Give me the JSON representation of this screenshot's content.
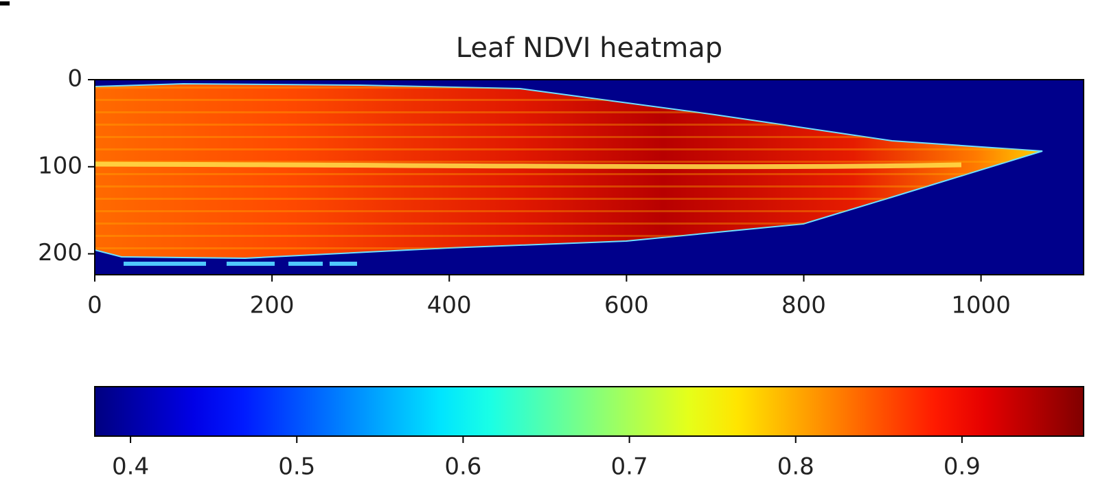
{
  "chart_data": {
    "type": "heatmap",
    "title": "Leaf NDVI heatmap",
    "xlim": [
      0,
      1108
    ],
    "ylim": [
      224,
      0
    ],
    "xticks": [
      0,
      200,
      400,
      600,
      800,
      1000
    ],
    "yticks": [
      0,
      100,
      200
    ],
    "colormap": "jet",
    "colorbar": {
      "lim": [
        0.3785,
        0.969
      ],
      "ticks": [
        0.4,
        0.5,
        0.6,
        0.7,
        0.8,
        0.9
      ]
    }
  }
}
